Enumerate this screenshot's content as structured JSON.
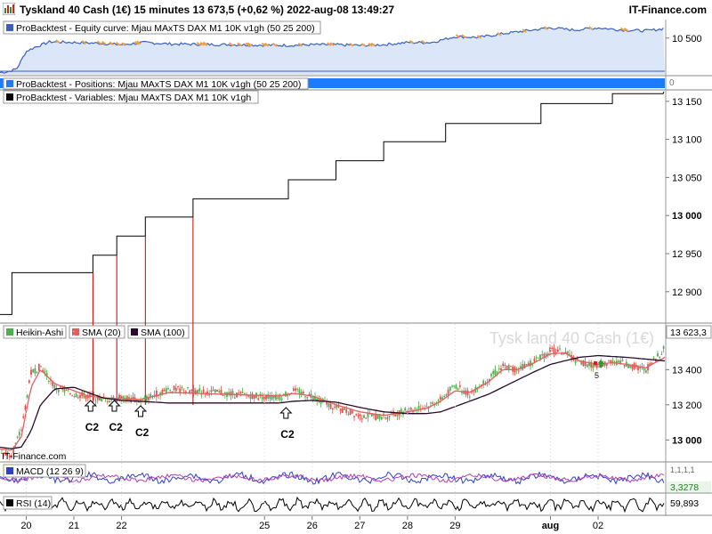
{
  "window": {
    "title": "Tyskland 40 Cash (1€) 15 minutes 13 673,5 (+0,62 %) 2022-aug-08 13:49:27",
    "brand": "IT-Finance.com"
  },
  "panels": {
    "equity": {
      "label": "ProBacktest - Equity curve: Mjau MAxTS DAX M1 10K v1gh (50 25 200)"
    },
    "positions": {
      "label": "ProBacktest - Positions: Mjau MAxTS DAX M1 10K v1gh (50 25 200)",
      "tick": "0"
    },
    "variables": {
      "label": "ProBacktest - Variables: Mjau MAxTS DAX M1 10K v1gh"
    },
    "price": {
      "legend": [
        {
          "label": "Heikin-Ashi",
          "color": "#4caf50"
        },
        {
          "label": "SMA (20)",
          "color": "#e06060"
        },
        {
          "label": "SMA (100)",
          "color": "#2a0a2a"
        }
      ],
      "watermark": "Tysk land 40 Cash (1€)",
      "current_price": "13 623,3",
      "source": "IT-Finance.com"
    },
    "macd": {
      "label": "MACD (12 26 9)",
      "value": "3,3278",
      "top_partial": "1,1,1,1"
    },
    "rsi": {
      "label": "RSI (14)",
      "value": "59,893"
    }
  },
  "annotations": {
    "arrows": [
      {
        "label": "C2",
        "day": 21.35
      },
      {
        "label": "C2",
        "day": 21.85
      },
      {
        "label": "C2",
        "day": 22.4
      },
      {
        "label": "C2",
        "day": 25.45
      }
    ],
    "signals": [
      {
        "label": "5",
        "day": 32.0
      }
    ]
  },
  "chart_data": [
    {
      "type": "line",
      "title": "ProBacktest - Equity curve: Mjau MAxTS DAX M1 10K v1gh (50 25 200)",
      "x_unit": "day (July 2022, continuing into August)",
      "yticks": [
        10500
      ],
      "ytick_labels": [
        "10 500"
      ],
      "ylim": [
        10250,
        10620
      ],
      "x": [
        19.4,
        19.6,
        19.8,
        20.0,
        20.2,
        20.5,
        21.0,
        21.5,
        22.0,
        22.5,
        23.0,
        25.5,
        26.0,
        26.5,
        27.0,
        27.5,
        28.0,
        28.5,
        29.0,
        29.5,
        30.0,
        31.0,
        31.5,
        32.0,
        32.5,
        33.0,
        33.3,
        33.4
      ],
      "y": [
        10265,
        10270,
        10290,
        10410,
        10440,
        10475,
        10470,
        10465,
        10455,
        10470,
        10460,
        10450,
        10455,
        10455,
        10450,
        10455,
        10470,
        10470,
        10510,
        10505,
        10530,
        10570,
        10555,
        10570,
        10555,
        10550,
        10560,
        10570
      ]
    },
    {
      "type": "line",
      "title": "ProBacktest - Variables: Mjau MAxTS DAX M1 10K v1gh",
      "series": [
        {
          "shape": "step",
          "x": [
            19.4,
            19.7,
            21.4,
            21.9,
            22.5,
            23.5,
            25.5,
            26.5,
            27.5,
            28.8,
            30.8,
            32.3,
            33.3
          ],
          "y": [
            12870,
            12925,
            12948,
            12973,
            12998,
            13022,
            13047,
            13072,
            13097,
            13121,
            13147,
            13160,
            13160
          ]
        }
      ],
      "yticks": [
        12900,
        12950,
        13000,
        13050,
        13100,
        13150
      ],
      "ytick_labels": [
        "12 900",
        "12 950",
        "13 000",
        "13 050",
        "13 100",
        "13 150"
      ],
      "ylim": [
        12860,
        13165
      ]
    },
    {
      "type": "line",
      "title": "Tyskland 40 Cash (1€)",
      "x": [
        19.4,
        19.7,
        19.9,
        20.1,
        20.3,
        20.6,
        21.0,
        21.3,
        21.6,
        22.0,
        22.4,
        22.7,
        23.0,
        25.3,
        25.6,
        26.0,
        26.5,
        27.0,
        27.5,
        28.0,
        28.4,
        28.7,
        29.0,
        29.3,
        29.7,
        30.0,
        30.3,
        30.6,
        31.0,
        31.3,
        31.6,
        32.0,
        32.3,
        32.6,
        33.0,
        33.4
      ],
      "series": [
        {
          "name": "Heikin-Ashi",
          "values": [
            12930,
            12920,
            13060,
            13380,
            13420,
            13300,
            13260,
            13250,
            13230,
            13240,
            13220,
            13260,
            13290,
            13240,
            13280,
            13250,
            13180,
            13140,
            13130,
            13170,
            13190,
            13230,
            13310,
            13260,
            13350,
            13420,
            13400,
            13440,
            13510,
            13500,
            13440,
            13420,
            13450,
            13430,
            13400,
            13520
          ]
        },
        {
          "name": "SMA (20)",
          "values": [
            12950,
            12940,
            13020,
            13300,
            13400,
            13320,
            13280,
            13250,
            13240,
            13235,
            13230,
            13250,
            13270,
            13250,
            13265,
            13250,
            13200,
            13160,
            13140,
            13160,
            13180,
            13220,
            13280,
            13270,
            13330,
            13400,
            13400,
            13430,
            13490,
            13495,
            13450,
            13430,
            13440,
            13430,
            13410,
            13470
          ]
        },
        {
          "name": "SMA (100)",
          "values": [
            12960,
            12950,
            12960,
            13050,
            13200,
            13290,
            13300,
            13270,
            13240,
            13225,
            13220,
            13215,
            13210,
            13210,
            13220,
            13225,
            13215,
            13185,
            13160,
            13150,
            13150,
            13160,
            13190,
            13220,
            13260,
            13300,
            13340,
            13380,
            13430,
            13450,
            13470,
            13480,
            13475,
            13470,
            13460,
            13450
          ]
        }
      ],
      "yticks": [
        13000,
        13200,
        13400
      ],
      "ytick_labels": [
        "13 000",
        "13 200",
        "13 400"
      ],
      "ylim": [
        12880,
        13660
      ]
    }
  ],
  "x_axis": {
    "ticks": [
      {
        "label": "20",
        "day": 20,
        "bold": false
      },
      {
        "label": "21",
        "day": 21,
        "bold": false
      },
      {
        "label": "22",
        "day": 22,
        "bold": false
      },
      {
        "label": "25",
        "day": 25,
        "bold": false
      },
      {
        "label": "26",
        "day": 26,
        "bold": false
      },
      {
        "label": "27",
        "day": 27,
        "bold": false
      },
      {
        "label": "28",
        "day": 28,
        "bold": false
      },
      {
        "label": "29",
        "day": 29,
        "bold": false
      },
      {
        "label": "aug",
        "day": 31,
        "bold": true
      },
      {
        "label": "02",
        "day": 32,
        "bold": false
      }
    ]
  },
  "colors": {
    "equity_line": "#3a5fbf",
    "equity_fill": "#dbe6f8",
    "positions_bar": "#1e7bff",
    "variables_line": "#000000",
    "vertical_marker": "#cc0000",
    "candle_up": "#4caf50",
    "candle_down": "#e05050"
  }
}
